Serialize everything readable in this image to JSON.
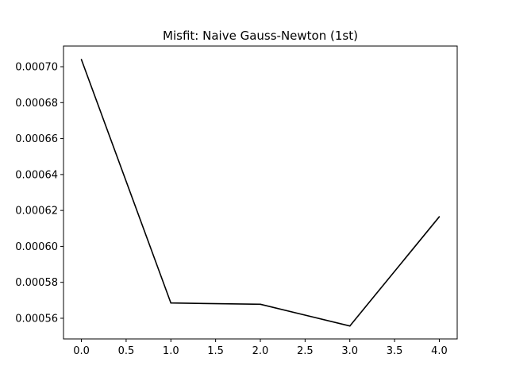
{
  "chart_data": {
    "type": "line",
    "title": "Misfit: Naive Gauss-Newton (1st)",
    "xlabel": "",
    "ylabel": "",
    "x": [
      0,
      1,
      2,
      3,
      4
    ],
    "series": [
      {
        "values": [
          0.000704,
          0.0005685,
          0.0005678,
          0.0005557,
          0.0006165
        ],
        "color": "#000000"
      }
    ],
    "xlim": [
      -0.2,
      4.2
    ],
    "ylim": [
      0.0005485,
      0.0007115
    ],
    "xticks": [
      0,
      0.5,
      1,
      1.5,
      2,
      2.5,
      3,
      3.5,
      4
    ],
    "xtick_labels": [
      "0.0",
      "0.5",
      "1.0",
      "1.5",
      "2.0",
      "2.5",
      "3.0",
      "3.5",
      "4.0"
    ],
    "yticks": [
      0.00056,
      0.00058,
      0.0006,
      0.00062,
      0.00064,
      0.00066,
      0.00068,
      0.0007
    ],
    "ytick_labels": [
      "0.00056",
      "0.00058",
      "0.00060",
      "0.00062",
      "0.00064",
      "0.00066",
      "0.00068",
      "0.00070"
    ],
    "grid": false,
    "legend": "none"
  }
}
